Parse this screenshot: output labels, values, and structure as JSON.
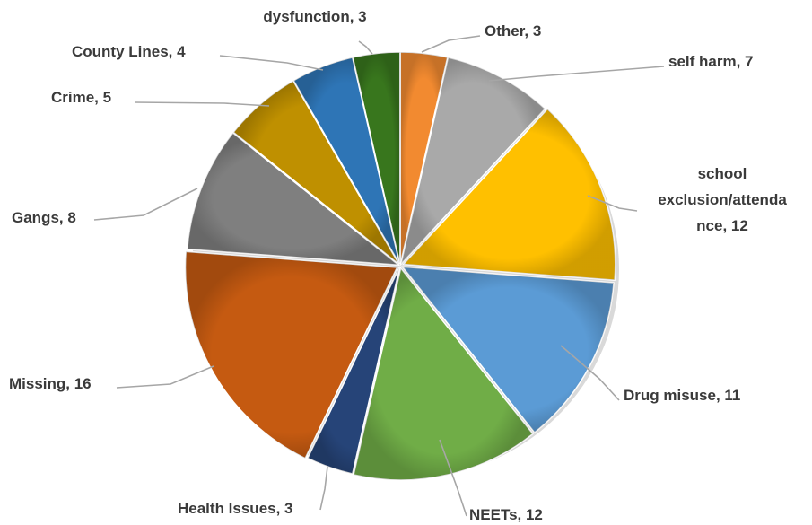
{
  "chart_data": {
    "type": "pie",
    "title": "",
    "start": "12 o'clock",
    "direction": "clockwise",
    "slices": [
      {
        "label_lines": [
          "Other, 3"
        ],
        "category": "Other",
        "value": 3,
        "color": "#f28a30"
      },
      {
        "label_lines": [
          "self harm, 7"
        ],
        "category": "self harm",
        "value": 7,
        "color": "#a9a9a9"
      },
      {
        "label_lines": [
          "school",
          "exclusion/attenda",
          "nce, 12"
        ],
        "category": "school exclusion/attendance",
        "value": 12,
        "color": "#ffc000"
      },
      {
        "label_lines": [
          "Drug misuse, 11"
        ],
        "category": "Drug misuse",
        "value": 11,
        "color": "#5b9bd5"
      },
      {
        "label_lines": [
          "NEETs, 12"
        ],
        "category": "NEETs",
        "value": 12,
        "color": "#70ad47"
      },
      {
        "label_lines": [
          "Health Issues, 3"
        ],
        "category": "Health Issues",
        "value": 3,
        "color": "#264478"
      },
      {
        "label_lines": [
          "Missing, 16"
        ],
        "category": "Missing",
        "value": 16,
        "color": "#c55a11"
      },
      {
        "label_lines": [
          "Gangs, 8"
        ],
        "category": "Gangs",
        "value": 8,
        "color": "#7f7f7f"
      },
      {
        "label_lines": [
          "Crime, 5"
        ],
        "category": "Crime",
        "value": 5,
        "color": "#bf9000"
      },
      {
        "label_lines": [
          "County Lines, 4"
        ],
        "category": "County Lines",
        "value": 4,
        "color": "#2e75b6"
      },
      {
        "label_lines": [
          "Family",
          "dysfunction, 3"
        ],
        "category": "Family dysfunction",
        "value": 3,
        "color": "#38761d"
      }
    ]
  }
}
